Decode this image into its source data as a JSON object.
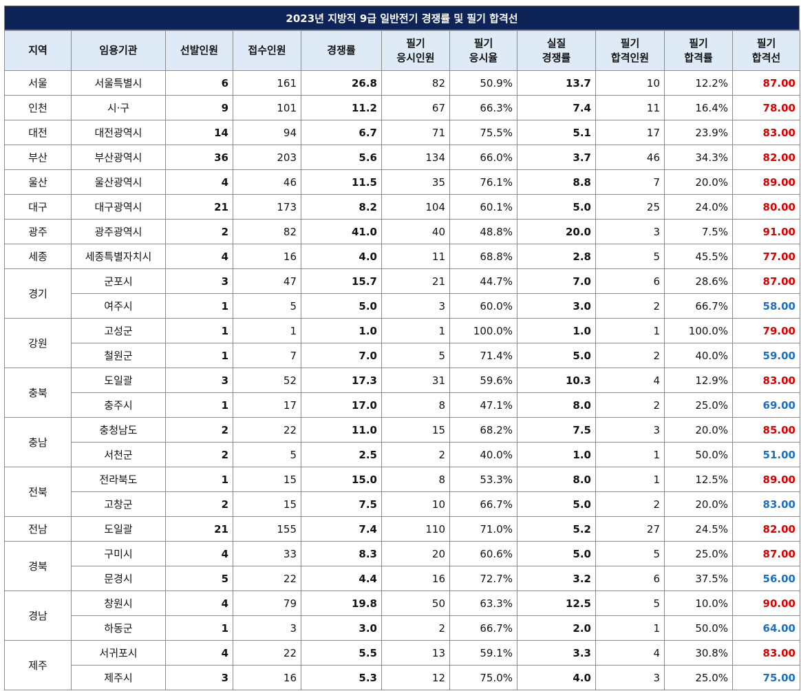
{
  "title": "2023년 지방직 9급 일반전기 경쟁률 및 필기 합격선",
  "headers": [
    [
      "지역"
    ],
    [
      "임용기관"
    ],
    [
      "선발인원"
    ],
    [
      "접수인원"
    ],
    [
      "경쟁률"
    ],
    [
      "필기",
      "응시인원"
    ],
    [
      "필기",
      "응시율"
    ],
    [
      "실질",
      "경쟁률"
    ],
    [
      "필기",
      "합격인원"
    ],
    [
      "필기",
      "합격률"
    ],
    [
      "필기",
      "합격선"
    ]
  ],
  "groups": [
    {
      "region": "서울",
      "rows": [
        {
          "agency": "서울특별시",
          "selected": "6",
          "applied": "161",
          "ratio": "26.8",
          "exam_takers": "82",
          "exam_rate": "50.9%",
          "real_ratio": "13.7",
          "passed": "10",
          "pass_rate": "12.2%",
          "cutoff": "87.00",
          "color": "red"
        }
      ]
    },
    {
      "region": "인천",
      "rows": [
        {
          "agency": "시·구",
          "selected": "9",
          "applied": "101",
          "ratio": "11.2",
          "exam_takers": "67",
          "exam_rate": "66.3%",
          "real_ratio": "7.4",
          "passed": "11",
          "pass_rate": "16.4%",
          "cutoff": "78.00",
          "color": "red"
        }
      ]
    },
    {
      "region": "대전",
      "rows": [
        {
          "agency": "대전광역시",
          "selected": "14",
          "applied": "94",
          "ratio": "6.7",
          "exam_takers": "71",
          "exam_rate": "75.5%",
          "real_ratio": "5.1",
          "passed": "17",
          "pass_rate": "23.9%",
          "cutoff": "83.00",
          "color": "red"
        }
      ]
    },
    {
      "region": "부산",
      "rows": [
        {
          "agency": "부산광역시",
          "selected": "36",
          "applied": "203",
          "ratio": "5.6",
          "exam_takers": "134",
          "exam_rate": "66.0%",
          "real_ratio": "3.7",
          "passed": "46",
          "pass_rate": "34.3%",
          "cutoff": "82.00",
          "color": "red"
        }
      ]
    },
    {
      "region": "울산",
      "rows": [
        {
          "agency": "울산광역시",
          "selected": "4",
          "applied": "46",
          "ratio": "11.5",
          "exam_takers": "35",
          "exam_rate": "76.1%",
          "real_ratio": "8.8",
          "passed": "7",
          "pass_rate": "20.0%",
          "cutoff": "89.00",
          "color": "red"
        }
      ]
    },
    {
      "region": "대구",
      "rows": [
        {
          "agency": "대구광역시",
          "selected": "21",
          "applied": "173",
          "ratio": "8.2",
          "exam_takers": "104",
          "exam_rate": "60.1%",
          "real_ratio": "5.0",
          "passed": "25",
          "pass_rate": "24.0%",
          "cutoff": "80.00",
          "color": "red"
        }
      ]
    },
    {
      "region": "광주",
      "rows": [
        {
          "agency": "광주광역시",
          "selected": "2",
          "applied": "82",
          "ratio": "41.0",
          "exam_takers": "40",
          "exam_rate": "48.8%",
          "real_ratio": "20.0",
          "passed": "3",
          "pass_rate": "7.5%",
          "cutoff": "91.00",
          "color": "red"
        }
      ]
    },
    {
      "region": "세종",
      "rows": [
        {
          "agency": "세종특별자치시",
          "selected": "4",
          "applied": "16",
          "ratio": "4.0",
          "exam_takers": "11",
          "exam_rate": "68.8%",
          "real_ratio": "2.8",
          "passed": "5",
          "pass_rate": "45.5%",
          "cutoff": "77.00",
          "color": "red"
        }
      ]
    },
    {
      "region": "경기",
      "rows": [
        {
          "agency": "군포시",
          "selected": "3",
          "applied": "47",
          "ratio": "15.7",
          "exam_takers": "21",
          "exam_rate": "44.7%",
          "real_ratio": "7.0",
          "passed": "6",
          "pass_rate": "28.6%",
          "cutoff": "87.00",
          "color": "red"
        },
        {
          "agency": "여주시",
          "selected": "1",
          "applied": "5",
          "ratio": "5.0",
          "exam_takers": "3",
          "exam_rate": "60.0%",
          "real_ratio": "3.0",
          "passed": "2",
          "pass_rate": "66.7%",
          "cutoff": "58.00",
          "color": "blue"
        }
      ]
    },
    {
      "region": "강원",
      "rows": [
        {
          "agency": "고성군",
          "selected": "1",
          "applied": "1",
          "ratio": "1.0",
          "exam_takers": "1",
          "exam_rate": "100.0%",
          "real_ratio": "1.0",
          "passed": "1",
          "pass_rate": "100.0%",
          "cutoff": "79.00",
          "color": "red"
        },
        {
          "agency": "철원군",
          "selected": "1",
          "applied": "7",
          "ratio": "7.0",
          "exam_takers": "5",
          "exam_rate": "71.4%",
          "real_ratio": "5.0",
          "passed": "2",
          "pass_rate": "40.0%",
          "cutoff": "59.00",
          "color": "blue"
        }
      ]
    },
    {
      "region": "충북",
      "rows": [
        {
          "agency": "도일괄",
          "selected": "3",
          "applied": "52",
          "ratio": "17.3",
          "exam_takers": "31",
          "exam_rate": "59.6%",
          "real_ratio": "10.3",
          "passed": "4",
          "pass_rate": "12.9%",
          "cutoff": "83.00",
          "color": "red"
        },
        {
          "agency": "충주시",
          "selected": "1",
          "applied": "17",
          "ratio": "17.0",
          "exam_takers": "8",
          "exam_rate": "47.1%",
          "real_ratio": "8.0",
          "passed": "2",
          "pass_rate": "25.0%",
          "cutoff": "69.00",
          "color": "blue"
        }
      ]
    },
    {
      "region": "충남",
      "rows": [
        {
          "agency": "충청남도",
          "selected": "2",
          "applied": "22",
          "ratio": "11.0",
          "exam_takers": "15",
          "exam_rate": "68.2%",
          "real_ratio": "7.5",
          "passed": "3",
          "pass_rate": "20.0%",
          "cutoff": "85.00",
          "color": "red"
        },
        {
          "agency": "서천군",
          "selected": "2",
          "applied": "5",
          "ratio": "2.5",
          "exam_takers": "2",
          "exam_rate": "40.0%",
          "real_ratio": "1.0",
          "passed": "1",
          "pass_rate": "50.0%",
          "cutoff": "51.00",
          "color": "blue"
        }
      ]
    },
    {
      "region": "전북",
      "rows": [
        {
          "agency": "전라북도",
          "selected": "1",
          "applied": "15",
          "ratio": "15.0",
          "exam_takers": "8",
          "exam_rate": "53.3%",
          "real_ratio": "8.0",
          "passed": "1",
          "pass_rate": "12.5%",
          "cutoff": "89.00",
          "color": "red"
        },
        {
          "agency": "고창군",
          "selected": "2",
          "applied": "15",
          "ratio": "7.5",
          "exam_takers": "10",
          "exam_rate": "66.7%",
          "real_ratio": "5.0",
          "passed": "2",
          "pass_rate": "20.0%",
          "cutoff": "83.00",
          "color": "blue"
        }
      ]
    },
    {
      "region": "전남",
      "rows": [
        {
          "agency": "도일괄",
          "selected": "21",
          "applied": "155",
          "ratio": "7.4",
          "exam_takers": "110",
          "exam_rate": "71.0%",
          "real_ratio": "5.2",
          "passed": "27",
          "pass_rate": "24.5%",
          "cutoff": "82.00",
          "color": "red"
        }
      ]
    },
    {
      "region": "경북",
      "rows": [
        {
          "agency": "구미시",
          "selected": "4",
          "applied": "33",
          "ratio": "8.3",
          "exam_takers": "20",
          "exam_rate": "60.6%",
          "real_ratio": "5.0",
          "passed": "5",
          "pass_rate": "25.0%",
          "cutoff": "87.00",
          "color": "red"
        },
        {
          "agency": "문경시",
          "selected": "5",
          "applied": "22",
          "ratio": "4.4",
          "exam_takers": "16",
          "exam_rate": "72.7%",
          "real_ratio": "3.2",
          "passed": "6",
          "pass_rate": "37.5%",
          "cutoff": "56.00",
          "color": "blue"
        }
      ]
    },
    {
      "region": "경남",
      "rows": [
        {
          "agency": "창원시",
          "selected": "4",
          "applied": "79",
          "ratio": "19.8",
          "exam_takers": "50",
          "exam_rate": "63.3%",
          "real_ratio": "12.5",
          "passed": "5",
          "pass_rate": "10.0%",
          "cutoff": "90.00",
          "color": "red"
        },
        {
          "agency": "하동군",
          "selected": "1",
          "applied": "3",
          "ratio": "3.0",
          "exam_takers": "2",
          "exam_rate": "66.7%",
          "real_ratio": "2.0",
          "passed": "1",
          "pass_rate": "50.0%",
          "cutoff": "64.00",
          "color": "blue"
        }
      ]
    },
    {
      "region": "제주",
      "rows": [
        {
          "agency": "서귀포시",
          "selected": "4",
          "applied": "22",
          "ratio": "5.5",
          "exam_takers": "13",
          "exam_rate": "59.1%",
          "real_ratio": "3.3",
          "passed": "4",
          "pass_rate": "30.8%",
          "cutoff": "83.00",
          "color": "red"
        },
        {
          "agency": "제주시",
          "selected": "3",
          "applied": "16",
          "ratio": "5.3",
          "exam_takers": "12",
          "exam_rate": "75.0%",
          "real_ratio": "4.0",
          "passed": "3",
          "pass_rate": "25.0%",
          "cutoff": "75.00",
          "color": "blue"
        }
      ]
    }
  ]
}
